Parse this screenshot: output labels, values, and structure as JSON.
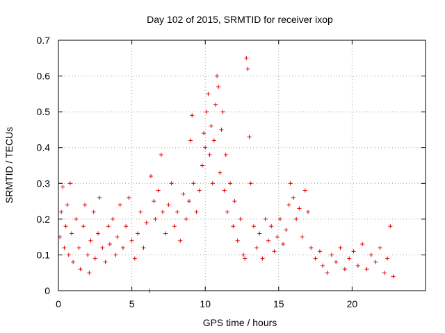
{
  "chart_data": {
    "type": "scatter",
    "title": "Day 102 of 2015, SRMTID for receiver ixop",
    "xlabel": "GPS time / hours",
    "ylabel": "SRMTID / TECUs",
    "xlim": [
      0,
      25
    ],
    "ylim": [
      0,
      0.7
    ],
    "x_ticks": [
      0,
      5,
      10,
      15,
      20
    ],
    "x_tick_labels": [
      "0",
      "5",
      "10",
      "15",
      "20"
    ],
    "y_ticks": [
      0,
      0.1,
      0.2,
      0.3,
      0.4,
      0.5,
      0.6,
      0.7
    ],
    "y_tick_labels": [
      "0",
      "0.1",
      "0.2",
      "0.3",
      "0.4",
      "0.5",
      "0.6",
      "0.7"
    ],
    "grid": true,
    "marker": "plus",
    "series": [
      {
        "name": "SRMTID",
        "color": "#e00000",
        "points": [
          [
            0.1,
            0.15
          ],
          [
            0.2,
            0.22
          ],
          [
            0.3,
            0.29
          ],
          [
            0.4,
            0.12
          ],
          [
            0.5,
            0.18
          ],
          [
            0.6,
            0.24
          ],
          [
            0.7,
            0.1
          ],
          [
            0.8,
            0.3
          ],
          [
            0.9,
            0.16
          ],
          [
            1.0,
            0.08
          ],
          [
            1.2,
            0.2
          ],
          [
            1.4,
            0.12
          ],
          [
            1.5,
            0.06
          ],
          [
            1.7,
            0.18
          ],
          [
            1.8,
            0.24
          ],
          [
            2.0,
            0.1
          ],
          [
            2.1,
            0.05
          ],
          [
            2.2,
            0.14
          ],
          [
            2.4,
            0.22
          ],
          [
            2.5,
            0.09
          ],
          [
            2.7,
            0.16
          ],
          [
            2.8,
            0.26
          ],
          [
            3.0,
            0.12
          ],
          [
            3.2,
            0.08
          ],
          [
            3.4,
            0.18
          ],
          [
            3.5,
            0.13
          ],
          [
            3.7,
            0.2
          ],
          [
            3.9,
            0.1
          ],
          [
            4.0,
            0.15
          ],
          [
            4.2,
            0.24
          ],
          [
            4.4,
            0.12
          ],
          [
            4.6,
            0.18
          ],
          [
            4.8,
            0.26
          ],
          [
            5.0,
            0.14
          ],
          [
            5.2,
            0.09
          ],
          [
            5.4,
            0.16
          ],
          [
            5.6,
            0.22
          ],
          [
            5.8,
            0.12
          ],
          [
            6.0,
            0.19
          ],
          [
            6.2,
            0.0
          ],
          [
            6.3,
            0.32
          ],
          [
            6.5,
            0.25
          ],
          [
            6.6,
            0.2
          ],
          [
            6.8,
            0.28
          ],
          [
            7.0,
            0.38
          ],
          [
            7.1,
            0.22
          ],
          [
            7.3,
            0.16
          ],
          [
            7.5,
            0.24
          ],
          [
            7.7,
            0.3
          ],
          [
            7.9,
            0.18
          ],
          [
            8.1,
            0.22
          ],
          [
            8.3,
            0.14
          ],
          [
            8.5,
            0.27
          ],
          [
            8.7,
            0.2
          ],
          [
            8.9,
            0.25
          ],
          [
            9.0,
            0.42
          ],
          [
            9.1,
            0.49
          ],
          [
            9.2,
            0.3
          ],
          [
            9.4,
            0.22
          ],
          [
            9.6,
            0.28
          ],
          [
            9.8,
            0.35
          ],
          [
            9.9,
            0.44
          ],
          [
            10.0,
            0.4
          ],
          [
            10.1,
            0.5
          ],
          [
            10.2,
            0.55
          ],
          [
            10.3,
            0.38
          ],
          [
            10.4,
            0.46
          ],
          [
            10.5,
            0.3
          ],
          [
            10.6,
            0.42
          ],
          [
            10.7,
            0.52
          ],
          [
            10.8,
            0.6
          ],
          [
            10.9,
            0.57
          ],
          [
            11.0,
            0.33
          ],
          [
            11.1,
            0.45
          ],
          [
            11.2,
            0.5
          ],
          [
            11.3,
            0.28
          ],
          [
            11.4,
            0.38
          ],
          [
            11.5,
            0.22
          ],
          [
            11.7,
            0.3
          ],
          [
            11.9,
            0.18
          ],
          [
            12.0,
            0.25
          ],
          [
            12.2,
            0.14
          ],
          [
            12.4,
            0.2
          ],
          [
            12.6,
            0.1
          ],
          [
            12.7,
            0.09
          ],
          [
            12.8,
            0.65
          ],
          [
            12.9,
            0.62
          ],
          [
            13.0,
            0.43
          ],
          [
            13.1,
            0.3
          ],
          [
            13.3,
            0.18
          ],
          [
            13.5,
            0.12
          ],
          [
            13.7,
            0.16
          ],
          [
            13.9,
            0.09
          ],
          [
            14.1,
            0.2
          ],
          [
            14.3,
            0.14
          ],
          [
            14.5,
            0.18
          ],
          [
            14.7,
            0.11
          ],
          [
            14.9,
            0.15
          ],
          [
            15.1,
            0.2
          ],
          [
            15.3,
            0.13
          ],
          [
            15.5,
            0.17
          ],
          [
            15.7,
            0.24
          ],
          [
            15.8,
            0.3
          ],
          [
            16.0,
            0.26
          ],
          [
            16.2,
            0.2
          ],
          [
            16.4,
            0.23
          ],
          [
            16.6,
            0.15
          ],
          [
            16.8,
            0.28
          ],
          [
            17.0,
            0.22
          ],
          [
            17.2,
            0.12
          ],
          [
            17.5,
            0.09
          ],
          [
            17.8,
            0.11
          ],
          [
            18.0,
            0.07
          ],
          [
            18.3,
            0.05
          ],
          [
            18.6,
            0.1
          ],
          [
            18.9,
            0.08
          ],
          [
            19.2,
            0.12
          ],
          [
            19.5,
            0.06
          ],
          [
            19.8,
            0.09
          ],
          [
            20.1,
            0.11
          ],
          [
            20.4,
            0.07
          ],
          [
            20.7,
            0.13
          ],
          [
            21.0,
            0.06
          ],
          [
            21.3,
            0.1
          ],
          [
            21.6,
            0.08
          ],
          [
            21.9,
            0.12
          ],
          [
            22.2,
            0.05
          ],
          [
            22.4,
            0.09
          ],
          [
            22.6,
            0.18
          ],
          [
            22.8,
            0.04
          ]
        ]
      }
    ]
  }
}
